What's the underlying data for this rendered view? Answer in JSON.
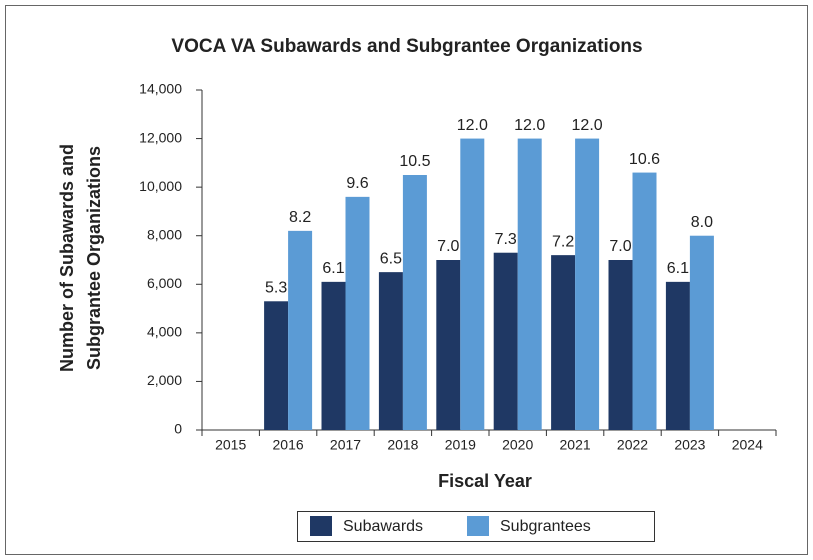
{
  "chart_data": {
    "type": "bar",
    "title": "VOCA VA Subawards and Subgrantee Organizations",
    "xlabel": "Fiscal Year",
    "ylabel": [
      "Number of Subawards and",
      "Subgrantee Organizations"
    ],
    "categories": [
      "2015",
      "2016",
      "2017",
      "2018",
      "2019",
      "2020",
      "2021",
      "2022",
      "2023",
      "2024"
    ],
    "series": [
      {
        "name": "Subawards",
        "color": "#1f3864",
        "values": [
          null,
          5300,
          6100,
          6500,
          7000,
          7300,
          7200,
          7000,
          6100,
          null
        ],
        "value_labels": [
          null,
          "5.3",
          "6.1",
          "6.5",
          "7.0",
          "7.3",
          "7.2",
          "7.0",
          "6.1",
          null
        ]
      },
      {
        "name": "Subgrantees",
        "color": "#5b9bd5",
        "values": [
          null,
          8200,
          9600,
          10500,
          12000,
          12000,
          12000,
          10600,
          8000,
          null
        ],
        "value_labels": [
          null,
          "8.2",
          "9.6",
          "10.5",
          "12.0",
          "12.0",
          "12.0",
          "10.6",
          "8.0",
          null
        ]
      }
    ],
    "ylim": [
      0,
      14000
    ],
    "yticks": [
      0,
      {
        "value": 2000,
        "label": "2,000"
      },
      {
        "value": 4000,
        "label": "4,000"
      },
      {
        "value": 6000,
        "label": "6,000"
      },
      {
        "value": 8000,
        "label": "8,000"
      },
      {
        "value": 10000,
        "label": "10,000"
      },
      {
        "value": 12000,
        "label": "12,000"
      },
      {
        "value": 14000,
        "label": "14,000"
      }
    ],
    "legend": "bottom"
  }
}
